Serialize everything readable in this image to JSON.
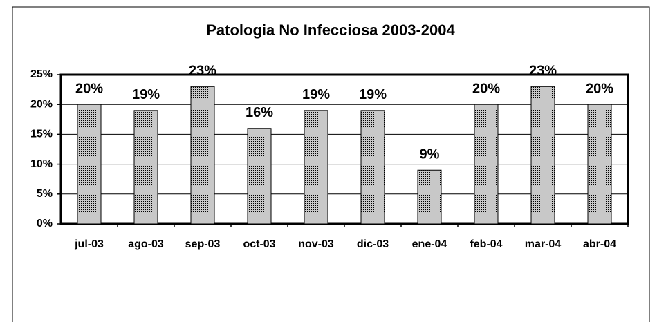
{
  "chart_data": {
    "type": "bar",
    "title": "Patologia No Infecciosa 2003-2004",
    "categories": [
      "jul-03",
      "ago-03",
      "sep-03",
      "oct-03",
      "nov-03",
      "dic-03",
      "ene-04",
      "feb-04",
      "mar-04",
      "abr-04"
    ],
    "values": [
      20,
      19,
      23,
      16,
      19,
      19,
      9,
      20,
      23,
      20
    ],
    "value_labels": [
      "20%",
      "19%",
      "23%",
      "16%",
      "19%",
      "19%",
      "9%",
      "20%",
      "23%",
      "20%"
    ],
    "color": "#c8c8c8",
    "ylim": [
      0,
      25
    ],
    "yticks": [
      {
        "value": 0,
        "label": "0%"
      },
      {
        "value": 5,
        "label": "5%"
      },
      {
        "value": 10,
        "label": "10%"
      },
      {
        "value": 15,
        "label": "15%"
      },
      {
        "value": 20,
        "label": "20%"
      },
      {
        "value": 25,
        "label": "25%"
      }
    ],
    "grid": true
  }
}
